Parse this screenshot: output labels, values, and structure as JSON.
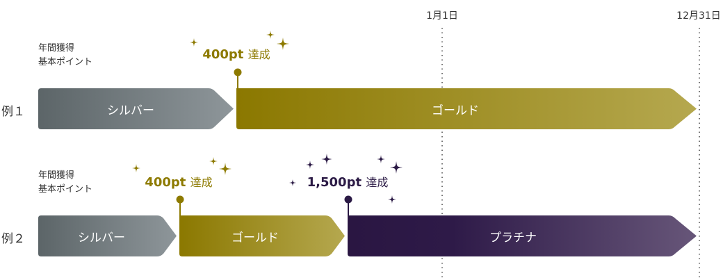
{
  "dates": {
    "start": "1月1日",
    "end": "12月31日"
  },
  "colors": {
    "silver": "#6b7477",
    "gold": "#8d7a00",
    "platinum": "#2b1744"
  },
  "examples": [
    {
      "label": "例１",
      "axis_label_line1": "年間獲得",
      "axis_label_line2": "基本ポイント",
      "tiers": [
        "シルバー",
        "ゴールド"
      ],
      "milestones": [
        {
          "points": "400pt",
          "suffix": "達成",
          "tier": "gold"
        }
      ]
    },
    {
      "label": "例２",
      "axis_label_line1": "年間獲得",
      "axis_label_line2": "基本ポイント",
      "tiers": [
        "シルバー",
        "ゴールド",
        "プラチナ"
      ],
      "milestones": [
        {
          "points": "400pt",
          "suffix": "達成",
          "tier": "gold"
        },
        {
          "points": "1,500pt",
          "suffix": "達成",
          "tier": "platinum"
        }
      ]
    }
  ]
}
